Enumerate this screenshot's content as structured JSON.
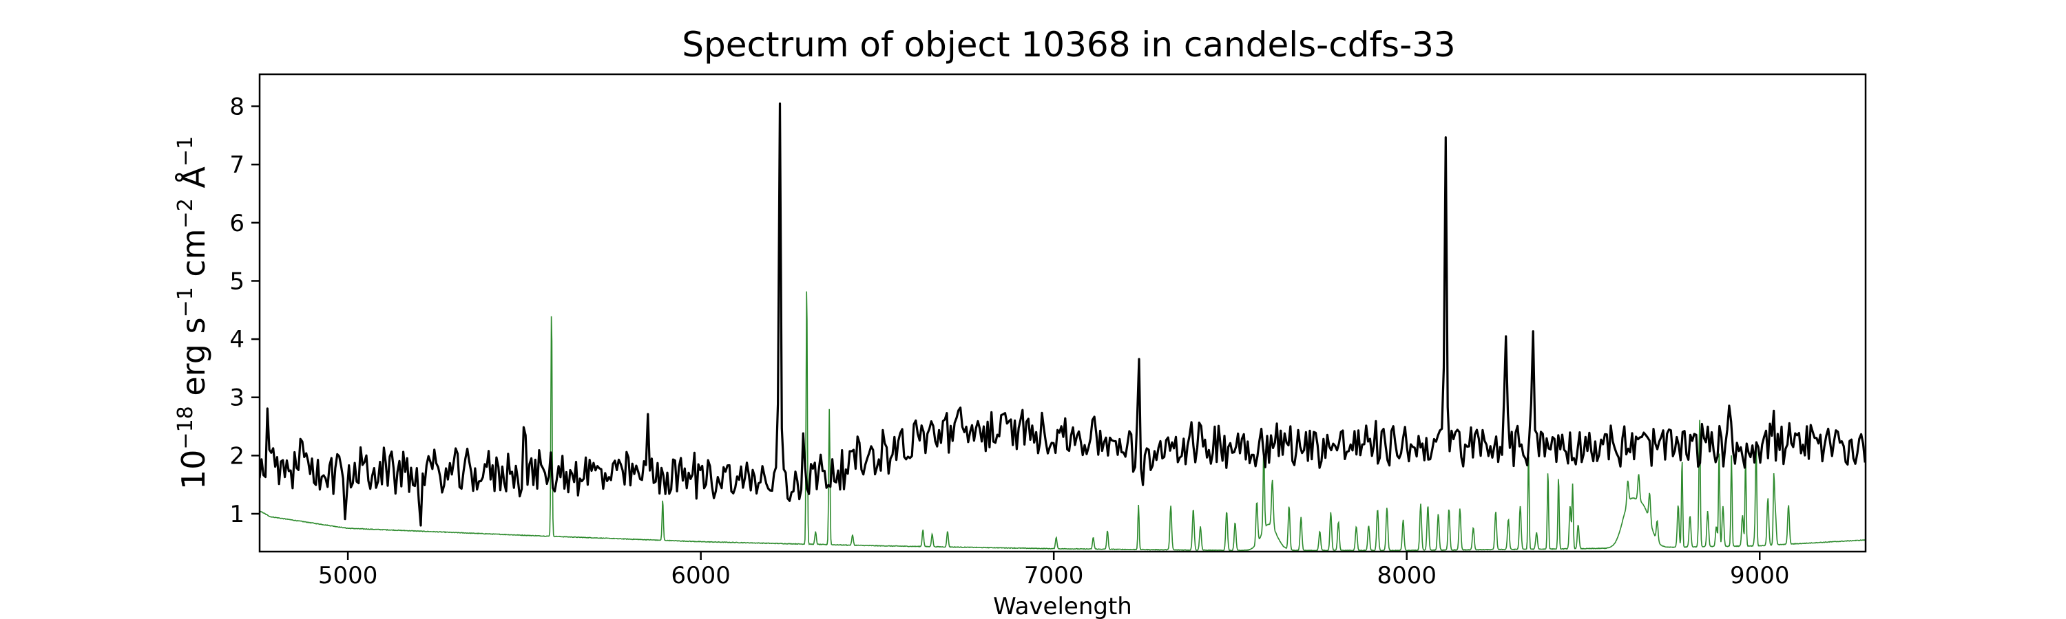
{
  "chart_data": {
    "type": "line",
    "title": "Spectrum of object 10368 in candels-cdfs-33",
    "xlabel": "Wavelength",
    "ylabel": {
      "prefix": "10",
      "sup1": "−18",
      "erg": " erg s",
      "sup2": "−1",
      "cm": " cm",
      "sup3": "−2",
      "ang": " Å",
      "sup4": "−1"
    },
    "xlim": [
      4750,
      9300
    ],
    "ylim": [
      0.35,
      8.55
    ],
    "xticks": [
      5000,
      6000,
      7000,
      8000,
      9000
    ],
    "yticks": [
      1,
      2,
      3,
      4,
      5,
      6,
      7,
      8
    ],
    "grid": false,
    "legend": "none",
    "series": [
      {
        "color": "#000000",
        "continuum": [
          [
            4750,
            1.75
          ],
          [
            6050,
            1.65
          ],
          [
            6250,
            1.5
          ],
          [
            6700,
            2.45
          ],
          [
            7000,
            2.4
          ],
          [
            7200,
            2.2
          ],
          [
            7250,
            1.7
          ],
          [
            7300,
            2.2
          ],
          [
            9300,
            2.15
          ]
        ],
        "noise": 0.35,
        "spikes": [
          {
            "x": 4772,
            "y": 2.95
          },
          {
            "x": 4868,
            "y": 2.85
          },
          {
            "x": 4995,
            "y": 0.8
          },
          {
            "x": 5205,
            "y": 0.7
          },
          {
            "x": 5500,
            "y": 2.7
          },
          {
            "x": 5850,
            "y": 2.65
          },
          {
            "x": 6224,
            "y": 8.2
          },
          {
            "x": 6292,
            "y": 2.55
          },
          {
            "x": 7240,
            "y": 3.9
          },
          {
            "x": 7250,
            "y": 1.25
          },
          {
            "x": 8110,
            "y": 7.45
          },
          {
            "x": 8280,
            "y": 3.85
          },
          {
            "x": 8357,
            "y": 4.6
          },
          {
            "x": 8912,
            "y": 3.25
          },
          {
            "x": 9038,
            "y": 3.1
          }
        ]
      },
      {
        "color": "#2e8b2e",
        "continuum": [
          [
            4750,
            1.05
          ],
          [
            4780,
            0.95
          ],
          [
            5000,
            0.75
          ],
          [
            5500,
            0.63
          ],
          [
            6000,
            0.52
          ],
          [
            6500,
            0.45
          ],
          [
            7000,
            0.4
          ],
          [
            7500,
            0.37
          ],
          [
            8000,
            0.37
          ],
          [
            8500,
            0.4
          ],
          [
            9000,
            0.45
          ],
          [
            9300,
            0.55
          ]
        ],
        "spikes": [
          {
            "x": 5577,
            "y": 4.55
          },
          {
            "x": 5892,
            "y": 1.25
          },
          {
            "x": 6300,
            "y": 5.0
          },
          {
            "x": 6364,
            "y": 2.8
          },
          {
            "x": 7240,
            "y": 1.15
          },
          {
            "x": 7595,
            "y": 1.35
          },
          {
            "x": 8345,
            "y": 2.05
          },
          {
            "x": 8400,
            "y": 1.75
          },
          {
            "x": 8430,
            "y": 1.65
          },
          {
            "x": 8470,
            "y": 1.5
          },
          {
            "x": 8780,
            "y": 1.95
          },
          {
            "x": 8830,
            "y": 1.9
          },
          {
            "x": 8885,
            "y": 2.1
          },
          {
            "x": 8920,
            "y": 2.0
          },
          {
            "x": 8960,
            "y": 1.95
          },
          {
            "x": 8990,
            "y": 2.05
          },
          {
            "x": 9040,
            "y": 1.55
          }
        ],
        "skyline_band": [
          7240,
          9100
        ],
        "skyline_range": [
          0.7,
          1.6
        ],
        "bumps": [
          {
            "x": 8630,
            "w": 28,
            "h": 0.7
          },
          {
            "x": 8670,
            "w": 30,
            "h": 0.65
          },
          {
            "x": 7610,
            "w": 30,
            "h": 0.45
          }
        ]
      }
    ]
  }
}
